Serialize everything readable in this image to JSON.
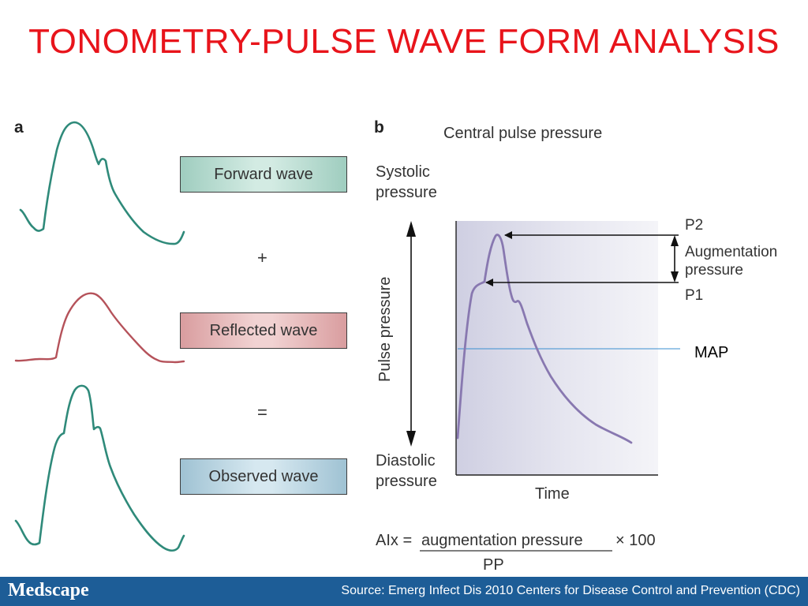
{
  "title": "TONOMETRY-PULSE WAVE FORM ANALYSIS",
  "panel_a": {
    "letter": "a",
    "forward_label": "Forward wave",
    "plus": "+",
    "reflected_label": "Reflected wave",
    "equals": "=",
    "observed_label": "Observed wave"
  },
  "panel_b": {
    "letter": "b",
    "heading": "Central pulse pressure",
    "systolic_line1": "Systolic",
    "systolic_line2": "pressure",
    "pulse_pressure": "Pulse pressure",
    "diastolic_line1": "Diastolic",
    "diastolic_line2": "pressure",
    "time_label": "Time",
    "p2": "P2",
    "augmentation_line1": "Augmentation",
    "augmentation_line2": "pressure",
    "p1": "P1",
    "map": "MAP"
  },
  "formula": {
    "lhs": "AIx =",
    "numerator": "augmentation pressure",
    "times": "× 100",
    "denominator": "PP"
  },
  "footer": {
    "brand": "Medscape",
    "source": "Source: Emerg Infect Dis 2010 Centers for Disease Control and Prevention (CDC)"
  },
  "colors": {
    "title": "#e8141b",
    "forward_wave": "#2f8a7a",
    "reflected_wave": "#b5525a",
    "observed_wave": "#2f8a7a",
    "central_wave": "#8878b0",
    "map_line": "#3a8fd0",
    "footer_bg": "#1d5d97"
  }
}
